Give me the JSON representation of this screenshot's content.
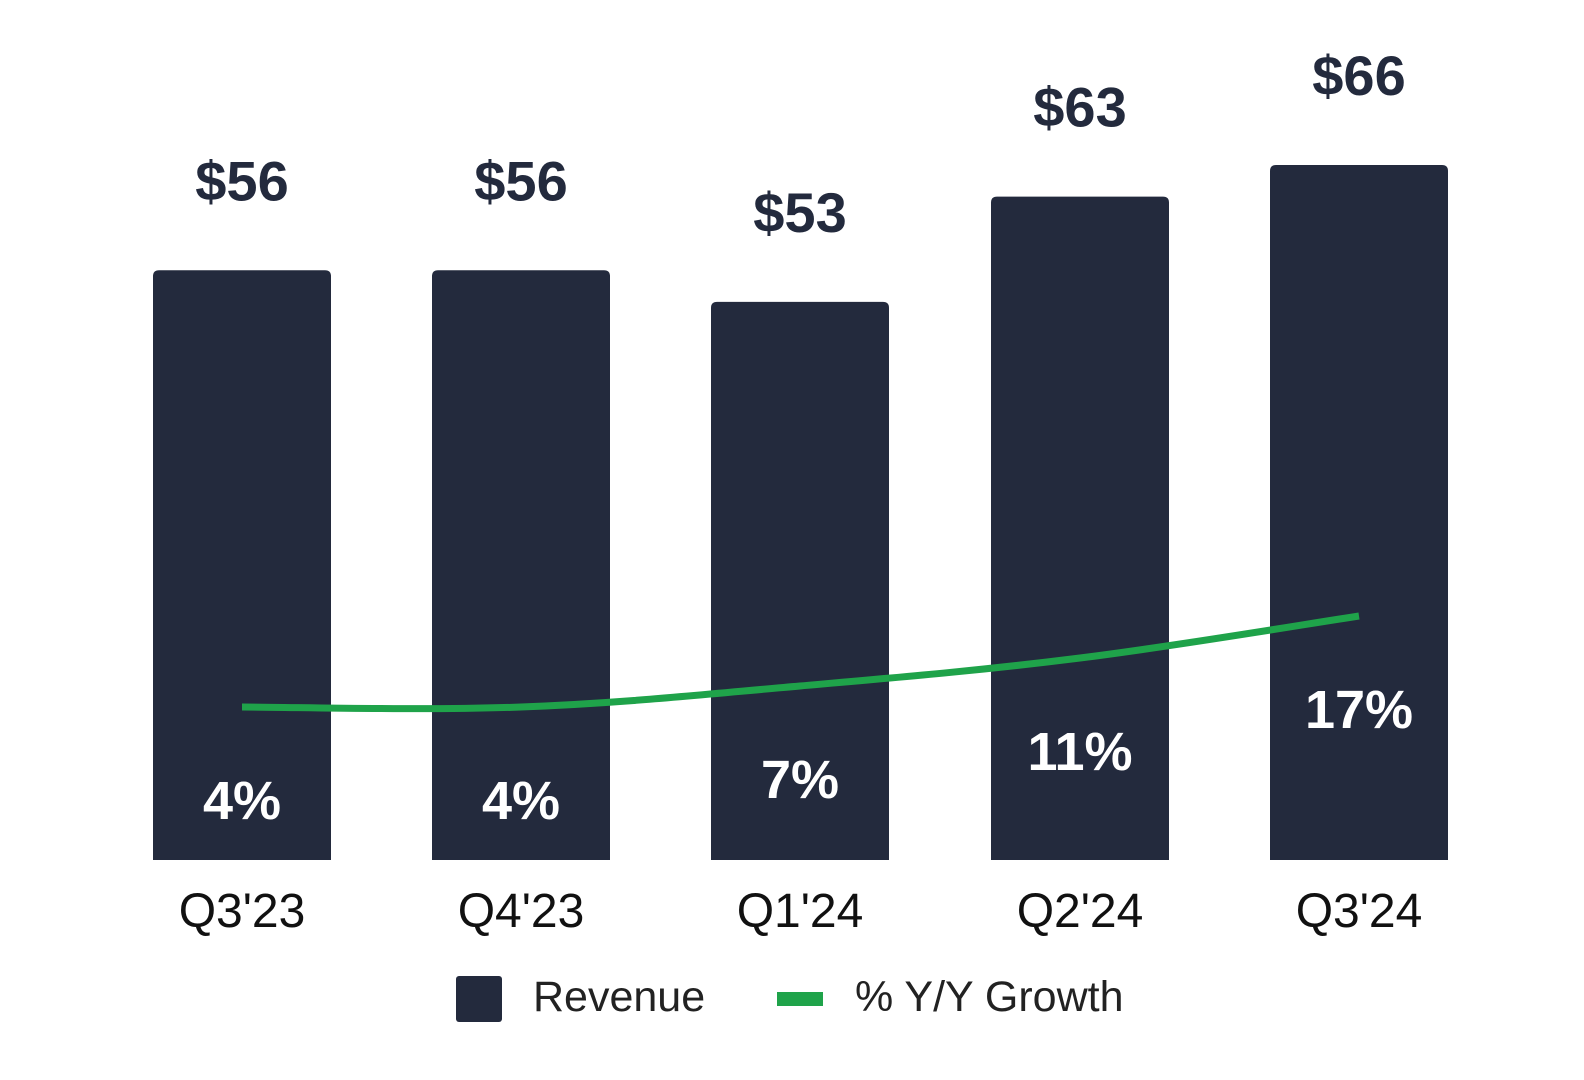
{
  "chart_data": {
    "type": "bar",
    "title": "",
    "xlabel": "",
    "ylabel": "",
    "categories": [
      "Q3'23",
      "Q4'23",
      "Q1'24",
      "Q2'24",
      "Q3'24"
    ],
    "series": [
      {
        "name": "Revenue",
        "kind": "bar",
        "values": [
          56,
          56,
          53,
          63,
          66
        ],
        "labels": [
          "$56",
          "$56",
          "$53",
          "$63",
          "$66"
        ],
        "color": "#232a3d"
      },
      {
        "name": "% Y/Y Growth",
        "kind": "line",
        "values": [
          4,
          4,
          7,
          11,
          17
        ],
        "labels": [
          "4%",
          "4%",
          "7%",
          "11%",
          "17%"
        ],
        "color": "#1fa34a"
      }
    ],
    "bar_ylim": [
      0,
      66
    ],
    "line_ylim": [
      0,
      70
    ],
    "grid": false,
    "legend": {
      "placement": "bottom-center",
      "entries": [
        "Revenue",
        "% Y/Y Growth"
      ]
    }
  },
  "colors": {
    "bar": "#232a3d",
    "line": "#1fa34a",
    "background": "#ffffff"
  }
}
